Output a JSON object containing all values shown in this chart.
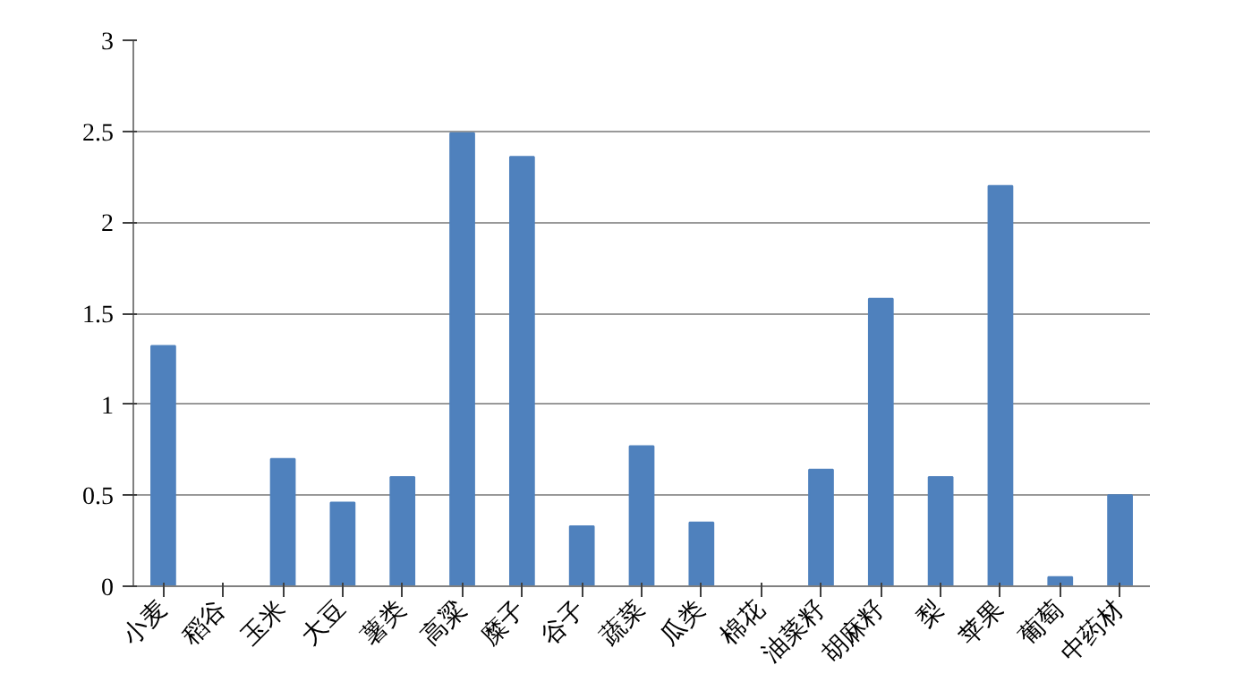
{
  "chart_data": {
    "type": "bar",
    "categories": [
      "小麦",
      "稻谷",
      "玉米",
      "大豆",
      "薯类",
      "高粱",
      "糜子",
      "谷子",
      "蔬菜",
      "瓜类",
      "棉花",
      "油菜籽",
      "胡麻籽",
      "梨",
      "苹果",
      "葡萄",
      "中药材"
    ],
    "values": [
      1.32,
      0,
      0.7,
      0.46,
      0.6,
      2.49,
      2.36,
      0.33,
      0.77,
      0.35,
      0,
      0.64,
      1.58,
      0.6,
      2.2,
      0.05,
      0.5
    ],
    "color": "#4f81bd",
    "ylim": [
      0,
      3
    ],
    "yticks": [
      0,
      0.5,
      1,
      1.5,
      2,
      2.5,
      3
    ],
    "grid": "y"
  }
}
